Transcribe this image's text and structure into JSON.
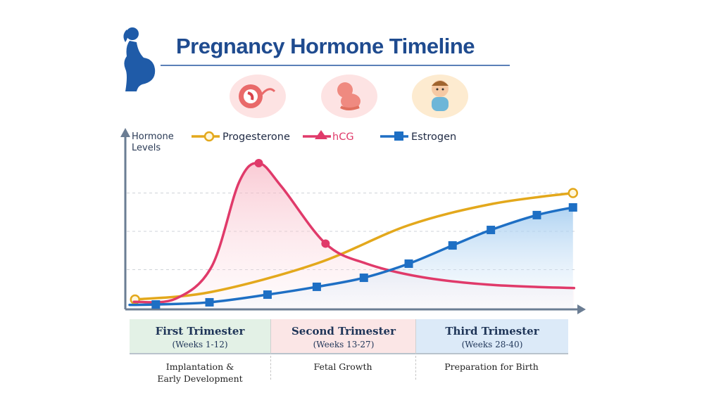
{
  "title": "Pregnancy Hormone Timeline",
  "icons": [
    "pregnant-woman-icon",
    "embryo-icon",
    "fetus-icon",
    "baby-icon"
  ],
  "chart_data": {
    "type": "line",
    "ylabel": "Hormone Levels",
    "xlabel": "",
    "legend_position": "top",
    "grid": true,
    "series": [
      {
        "name": "Progesterone",
        "color": "#e3a81c",
        "marker": "open-circle",
        "points": [
          [
            0.5,
            5.5
          ],
          [
            7.5,
            10.5
          ],
          [
            17.1,
            29
          ],
          [
            25.5,
            54
          ],
          [
            33.2,
            68
          ],
          [
            40.5,
            75
          ]
        ],
        "marked": [
          0,
          5
        ]
      },
      {
        "name": "hCG",
        "color": "#e03a6a",
        "marker": "triangle",
        "points": [
          [
            0.4,
            4
          ],
          [
            4.2,
            6
          ],
          [
            7.5,
            27
          ],
          [
            10,
            82
          ],
          [
            11.8,
            94.5
          ],
          [
            13.9,
            79
          ],
          [
            17.9,
            42
          ],
          [
            21.6,
            29
          ],
          [
            26.8,
            20
          ],
          [
            33.2,
            15
          ],
          [
            40.6,
            13
          ]
        ],
        "marked": [
          4,
          6
        ]
      },
      {
        "name": "Estrogen",
        "color": "#1e6fc4",
        "marker": "square",
        "points": [
          [
            0,
            2
          ],
          [
            2.4,
            2.3
          ],
          [
            7.3,
            3.7
          ],
          [
            12.6,
            8.7
          ],
          [
            17.1,
            13.8
          ],
          [
            21.4,
            19.7
          ],
          [
            25.5,
            28.9
          ],
          [
            29.5,
            40.8
          ],
          [
            33,
            50.9
          ],
          [
            37.2,
            60.6
          ],
          [
            40.5,
            65.6
          ]
        ],
        "marked": [
          1,
          2,
          3,
          4,
          5,
          6,
          7,
          8,
          9,
          10
        ]
      }
    ],
    "trimesters": [
      {
        "name": "First Trimester",
        "weeks": "(Weeks 1-12)",
        "phase": [
          "Implantation &",
          "Early Development"
        ],
        "color": "#e3f1e6"
      },
      {
        "name": "Second Trimester",
        "weeks": "(Weeks 13-27)",
        "phase": [
          "Fetal Growth"
        ],
        "color": "#fbe6e6"
      },
      {
        "name": "Third Trimester",
        "weeks": "(Weeks 28-40)",
        "phase": [
          "Preparation for Birth"
        ],
        "color": "#dceaf8"
      }
    ]
  }
}
